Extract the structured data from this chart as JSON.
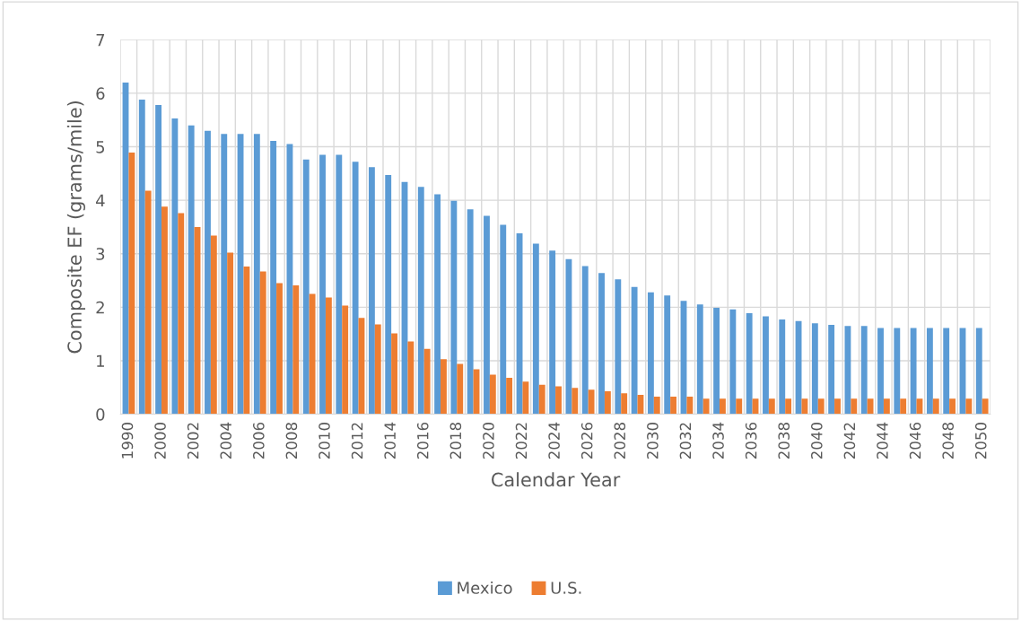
{
  "chart_data": {
    "type": "bar",
    "xlabel": "Calendar Year",
    "ylabel": "Composite EF (grams/mile)",
    "categories": [
      "1990",
      null,
      "2000",
      null,
      "2002",
      null,
      "2004",
      null,
      "2006",
      null,
      "2008",
      null,
      "2010",
      null,
      "2012",
      null,
      "2014",
      null,
      "2016",
      null,
      "2018",
      null,
      "2020",
      null,
      "2022",
      null,
      "2024",
      null,
      "2026",
      null,
      "2028",
      null,
      "2030",
      null,
      "2032",
      null,
      "2034",
      null,
      "2036",
      null,
      "2038",
      null,
      "2040",
      null,
      "2042",
      null,
      "2044",
      null,
      "2046",
      null,
      "2048",
      null,
      "2050"
    ],
    "series": [
      {
        "name": "Mexico",
        "color": "#5b9bd5",
        "values": [
          6.2,
          5.88,
          5.78,
          5.53,
          5.4,
          5.3,
          5.24,
          5.24,
          5.24,
          5.11,
          5.05,
          4.76,
          4.85,
          4.85,
          4.72,
          4.62,
          4.47,
          4.34,
          4.25,
          4.11,
          3.99,
          3.83,
          3.71,
          3.54,
          3.38,
          3.19,
          3.06,
          2.9,
          2.77,
          2.64,
          2.52,
          2.38,
          2.28,
          2.22,
          2.12,
          2.05,
          1.99,
          1.96,
          1.89,
          1.83,
          1.77,
          1.74,
          1.7,
          1.67,
          1.65,
          1.65,
          1.61,
          1.61,
          1.61,
          1.61,
          1.61,
          1.61,
          1.61
        ]
      },
      {
        "name": "U.S.",
        "color": "#ed7d31",
        "values": [
          4.89,
          4.18,
          3.88,
          3.76,
          3.5,
          3.34,
          3.02,
          2.76,
          2.67,
          2.45,
          2.41,
          2.25,
          2.18,
          2.03,
          1.8,
          1.68,
          1.51,
          1.36,
          1.22,
          1.03,
          0.94,
          0.84,
          0.74,
          0.68,
          0.61,
          0.55,
          0.52,
          0.49,
          0.46,
          0.43,
          0.39,
          0.36,
          0.33,
          0.33,
          0.33,
          0.29,
          0.29,
          0.29,
          0.29,
          0.29,
          0.29,
          0.29,
          0.29,
          0.29,
          0.29,
          0.29,
          0.29,
          0.29,
          0.29,
          0.29,
          0.29,
          0.29,
          0.29
        ]
      }
    ],
    "ylim": [
      0,
      7
    ],
    "yticks": [
      0,
      1,
      2,
      3,
      4,
      5,
      6,
      7
    ],
    "grid": true,
    "legend": "bottom"
  }
}
